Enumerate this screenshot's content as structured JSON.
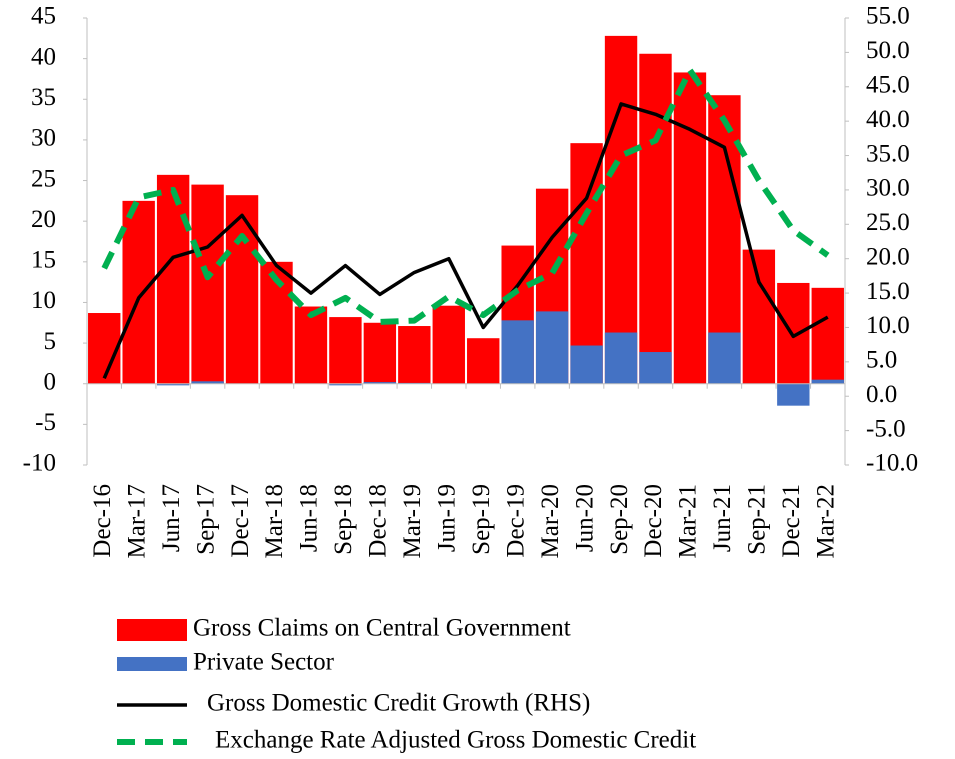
{
  "chart_data": {
    "type": "bar",
    "categories": [
      "Dec-16",
      "Mar-17",
      "Jun-17",
      "Sep-17",
      "Dec-17",
      "Mar-18",
      "Jun-18",
      "Sep-18",
      "Dec-18",
      "Mar-19",
      "Jun-19",
      "Sep-19",
      "Dec-19",
      "Mar-20",
      "Jun-20",
      "Sep-20",
      "Dec-20",
      "Mar-21",
      "Jun-21",
      "Sep-21",
      "Dec-21",
      "Mar-22"
    ],
    "series": [
      {
        "name": "Gross Claims on Central Government",
        "color": "#ff0000",
        "type": "bar",
        "values": [
          8.7,
          22.5,
          25.7,
          24.5,
          23.2,
          15,
          9.5,
          8.2,
          7.5,
          7.1,
          9.6,
          5.6,
          17,
          24,
          29.6,
          42.8,
          40.6,
          38.3,
          35.5,
          16.5,
          12.4,
          11.8
        ]
      },
      {
        "name": "Private Sector",
        "color": "#4472c4",
        "type": "bar",
        "values": [
          0,
          0,
          -0.2,
          0.3,
          0,
          0,
          0,
          -0.2,
          0.2,
          0.1,
          0,
          0,
          7.8,
          8.9,
          4.7,
          6.3,
          3.9,
          0,
          6.3,
          0,
          -2.7,
          0.5
        ]
      },
      {
        "name": "Gross Domestic Credit Growth (RHS)",
        "color": "#000000",
        "type": "line",
        "axis": "y2",
        "values": [
          2.6,
          14.3,
          20.2,
          21.7,
          26.3,
          19,
          15,
          19,
          14.8,
          18,
          20,
          10,
          16.1,
          23.1,
          28.8,
          42.5,
          41,
          38.8,
          36.2,
          16.6,
          8.7,
          11.5
        ]
      },
      {
        "name": "Exchange Rate Adjusted Gross Domestic Credit",
        "color": "#00b050",
        "type": "line",
        "axis": "y2",
        "dashed": true,
        "values": [
          18.6,
          28.9,
          30,
          17.3,
          23.3,
          16.9,
          11.8,
          14.3,
          10.8,
          11,
          14.5,
          11.8,
          15.4,
          17.9,
          26.6,
          35,
          37.2,
          47.4,
          40.1,
          31.4,
          24.1,
          20.5
        ]
      }
    ],
    "ylim": [
      -10,
      45
    ],
    "yticks": [
      45,
      40,
      35,
      30,
      25,
      20,
      15,
      10,
      5,
      0,
      -5,
      -10
    ],
    "y2lim": [
      -10,
      55
    ],
    "y2ticks": [
      {
        "value": 55,
        "label": "55.0"
      },
      {
        "value": 50,
        "label": "50.0"
      },
      {
        "value": 45,
        "label": "45.0"
      },
      {
        "value": 40,
        "label": "40.0"
      },
      {
        "value": 35,
        "label": "35.0"
      },
      {
        "value": 30,
        "label": "30.0"
      },
      {
        "value": 25,
        "label": "25.0"
      },
      {
        "value": 20,
        "label": "20.0"
      },
      {
        "value": 15,
        "label": "15.0"
      },
      {
        "value": 10,
        "label": "10.0"
      },
      {
        "value": 5,
        "label": "5.0"
      },
      {
        "value": 0,
        "label": "0.0"
      },
      {
        "value": -5,
        "label": "-5.0"
      },
      {
        "value": -10,
        "label": "-10.0"
      }
    ],
    "grid": false,
    "legend": "bottom"
  }
}
